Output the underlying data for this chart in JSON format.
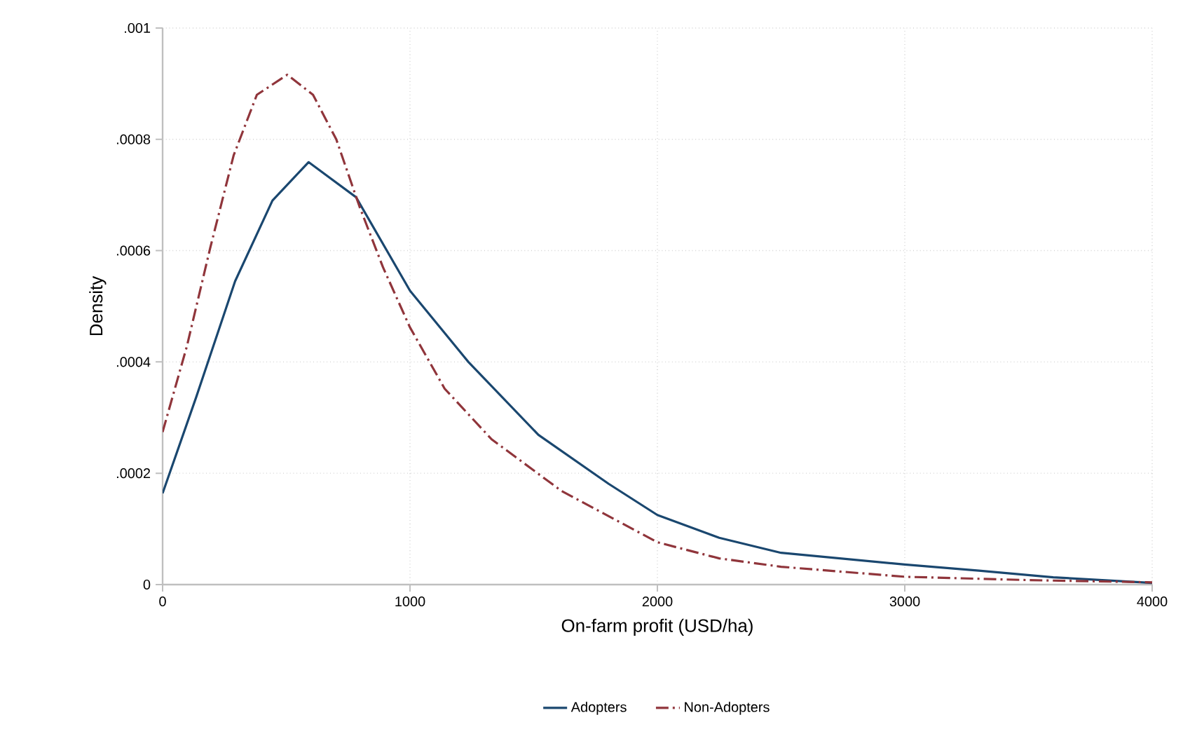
{
  "chart_data": {
    "type": "line",
    "xlabel": "On-farm profit (USD/ha)",
    "ylabel": "Density",
    "xlim": [
      0,
      4000
    ],
    "xticks": [
      0,
      1000,
      2000,
      3000,
      4000
    ],
    "ylim": [
      0,
      0.001
    ],
    "yticks": [
      {
        "value": 0,
        "label": "0"
      },
      {
        "value": 0.0002,
        "label": ".0002"
      },
      {
        "value": 0.0004,
        "label": ".0004"
      },
      {
        "value": 0.0006,
        "label": ".0006"
      },
      {
        "value": 0.0008,
        "label": ".0008"
      },
      {
        "value": 0.001,
        "label": ".001"
      }
    ],
    "grid": true,
    "legend": "bottom",
    "marker": "none",
    "series": [
      {
        "name": "Adopters",
        "color": "#1a476f",
        "line_style": "solid",
        "x": [
          0,
          136,
          293,
          444,
          590,
          782,
          1000,
          1236,
          1519,
          1803,
          2000,
          2250,
          2500,
          3000,
          3300,
          3600,
          4000
        ],
        "values": [
          0.000164,
          0.000337,
          0.000545,
          0.00069,
          0.000759,
          0.000696,
          0.000528,
          0.0004,
          0.000269,
          0.000181,
          0.000125,
          8.4e-05,
          5.7e-05,
          3.6e-05,
          2.5e-05,
          1.3e-05,
          3e-06
        ]
      },
      {
        "name": "Non-Adopters",
        "color": "#90353b",
        "line_style": "dashed",
        "x": [
          0,
          98,
          192,
          287,
          381,
          504,
          608,
          702,
          796,
          891,
          1000,
          1140,
          1330,
          1613,
          2000,
          2250,
          2500,
          3000,
          3500,
          4000
        ],
        "values": [
          0.000274,
          0.000428,
          0.000604,
          0.000771,
          0.00088,
          0.000916,
          0.00088,
          0.0008,
          0.000679,
          0.00057,
          0.000462,
          0.000352,
          0.000261,
          0.000168,
          7.6e-05,
          4.7e-05,
          3.2e-05,
          1.4e-05,
          8e-06,
          4e-06
        ]
      }
    ]
  }
}
